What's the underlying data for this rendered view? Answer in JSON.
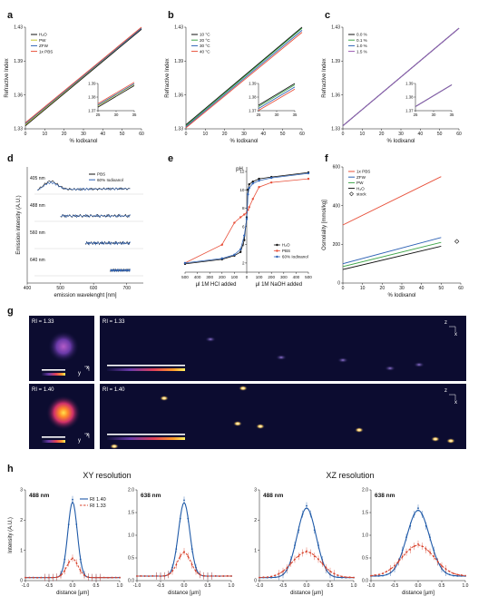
{
  "panel_letters": {
    "a": "a",
    "b": "b",
    "c": "c",
    "d": "d",
    "e": "e",
    "f": "f",
    "g": "g",
    "h": "h"
  },
  "colors": {
    "black": "#111111",
    "yellow": "#c7c72e",
    "blue": "#2e62b5",
    "orange": "#e8503a",
    "green": "#3fa64a",
    "purple": "#9a59b0",
    "darkred": "#c03020",
    "darkblue": "#1f5aa8",
    "red": "#d9452f"
  },
  "chart_data": [
    {
      "id": "a",
      "type": "line",
      "ylabel": "Refractive Index",
      "xlabel": "% Iodixanol",
      "xlim": [
        0,
        60
      ],
      "ylim": [
        1.33,
        1.43
      ],
      "xticks": [
        "0",
        "10",
        "20",
        "30",
        "40",
        "50",
        "60"
      ],
      "yticks": [
        "1.33",
        "1.36",
        "1.39",
        "1.43"
      ],
      "series": [
        {
          "name": "H₂O",
          "color": "#111111",
          "x": [
            0,
            60
          ],
          "y": [
            1.333,
            1.428
          ]
        },
        {
          "name": "PW",
          "color": "#c7c72e",
          "x": [
            0,
            60
          ],
          "y": [
            1.334,
            1.429
          ]
        },
        {
          "name": "ZFW",
          "color": "#2e62b5",
          "x": [
            0,
            60
          ],
          "y": [
            1.335,
            1.429
          ]
        },
        {
          "name": "1x PBS",
          "color": "#e8503a",
          "x": [
            0,
            60
          ],
          "y": [
            1.336,
            1.43
          ]
        }
      ],
      "inset": {
        "xticks": [
          "25",
          "30",
          "35"
        ],
        "yticks": [
          "1.37",
          "1.38",
          "1.39"
        ],
        "xlim": [
          25,
          35
        ],
        "ylim": [
          1.37,
          1.39
        ]
      }
    },
    {
      "id": "b",
      "type": "line",
      "ylabel": "Refractive Index",
      "xlabel": "% Iodixanol",
      "xlim": [
        0,
        60
      ],
      "ylim": [
        1.33,
        1.43
      ],
      "xticks": [
        "0",
        "10",
        "20",
        "30",
        "40",
        "50",
        "60"
      ],
      "yticks": [
        "1.33",
        "1.36",
        "1.39",
        "1.43"
      ],
      "series": [
        {
          "name": "10 °C",
          "color": "#111111",
          "x": [
            0,
            60
          ],
          "y": [
            1.334,
            1.43
          ]
        },
        {
          "name": "20 °C",
          "color": "#3fa64a",
          "x": [
            0,
            60
          ],
          "y": [
            1.333,
            1.429
          ]
        },
        {
          "name": "30 °C",
          "color": "#2e62b5",
          "x": [
            0,
            60
          ],
          "y": [
            1.332,
            1.427
          ]
        },
        {
          "name": "40 °C",
          "color": "#e8503a",
          "x": [
            0,
            60
          ],
          "y": [
            1.331,
            1.425
          ]
        }
      ],
      "inset": {
        "xticks": [
          "25",
          "30",
          "35"
        ],
        "yticks": [
          "1.37",
          "1.38",
          "1.39"
        ],
        "xlim": [
          25,
          35
        ],
        "ylim": [
          1.37,
          1.39
        ]
      }
    },
    {
      "id": "c",
      "type": "line",
      "ylabel": "Refractive Index",
      "xlabel": "% Iodixanol",
      "xlim": [
        0,
        60
      ],
      "ylim": [
        1.33,
        1.43
      ],
      "xticks": [
        "0",
        "10",
        "20",
        "30",
        "40",
        "50",
        "60"
      ],
      "yticks": [
        "1.33",
        "1.36",
        "1.39",
        "1.43"
      ],
      "series": [
        {
          "name": "0.0 %",
          "color": "#111111",
          "x": [
            0,
            60
          ],
          "y": [
            1.333,
            1.429
          ]
        },
        {
          "name": "0.1 %",
          "color": "#3fa64a",
          "x": [
            0,
            60
          ],
          "y": [
            1.333,
            1.429
          ]
        },
        {
          "name": "1.0 %",
          "color": "#2e62b5",
          "x": [
            0,
            60
          ],
          "y": [
            1.333,
            1.429
          ]
        },
        {
          "name": "1.5 %",
          "color": "#9a59b0",
          "x": [
            0,
            60
          ],
          "y": [
            1.333,
            1.429
          ]
        }
      ],
      "inset": {
        "xticks": [
          "25",
          "30",
          "35"
        ],
        "yticks": [
          "1.37",
          "1.38",
          "1.39"
        ],
        "xlim": [
          25,
          35
        ],
        "ylim": [
          1.37,
          1.39
        ]
      }
    },
    {
      "id": "d",
      "type": "line",
      "ylabel": "Emission intensity (A.U.)",
      "xlabel": "emission wavelenght [nm]",
      "xlim": [
        400,
        750
      ],
      "xticks": [
        "400",
        "500",
        "600",
        "700"
      ],
      "legend": [
        {
          "name": "PBS",
          "color": "#111111"
        },
        {
          "name": "60% Iodixanol",
          "color": "#2e62b5"
        }
      ],
      "rows": [
        {
          "label": "405 nm",
          "start": 430,
          "end": 710,
          "shape": "peak"
        },
        {
          "label": "488 nm",
          "start": 500,
          "end": 710,
          "shape": "flat"
        },
        {
          "label": "560 nm",
          "start": 575,
          "end": 710,
          "shape": "flat"
        },
        {
          "label": "640 nm",
          "start": 650,
          "end": 710,
          "shape": "flat"
        }
      ]
    },
    {
      "id": "e",
      "type": "line",
      "ylabel": "pH",
      "xlabel_left": "µl 1M HCl added",
      "xlabel_right": "µl 1M NaOH added",
      "xticks": [
        "500",
        "400",
        "300",
        "200",
        "100",
        "0",
        "100",
        "200",
        "300",
        "400",
        "500"
      ],
      "yticks": [
        "2",
        "4",
        "6",
        "8",
        "10",
        "12"
      ],
      "ylim": [
        1,
        12.5
      ],
      "series": [
        {
          "name": "H₂O",
          "color": "#111111",
          "x": [
            -500,
            -200,
            -100,
            -50,
            -20,
            0,
            10,
            20,
            50,
            100,
            200,
            500
          ],
          "y": [
            1.9,
            2.4,
            2.8,
            3.2,
            4.5,
            7,
            10,
            10.6,
            10.9,
            11.2,
            11.4,
            11.9
          ]
        },
        {
          "name": "PBS",
          "color": "#e8503a",
          "x": [
            -500,
            -200,
            -100,
            -50,
            -20,
            0,
            10,
            20,
            50,
            100,
            200,
            500
          ],
          "y": [
            2.0,
            4.0,
            6.4,
            7.0,
            7.3,
            7.5,
            7.8,
            8.1,
            9.0,
            10.3,
            10.8,
            11.2
          ]
        },
        {
          "name": "60% Iodixanol",
          "color": "#2e62b5",
          "x": [
            -500,
            -200,
            -100,
            -50,
            -20,
            0,
            10,
            20,
            50,
            100,
            200,
            500
          ],
          "y": [
            2.0,
            2.5,
            2.9,
            3.5,
            5.0,
            6.8,
            9.5,
            10.2,
            10.7,
            11.0,
            11.3,
            11.8
          ]
        }
      ]
    },
    {
      "id": "f",
      "type": "line",
      "ylabel": "Osmolality [mmol/kg]",
      "xlabel": "% Iodixanol",
      "xlim": [
        0,
        60
      ],
      "ylim": [
        0,
        600
      ],
      "xticks": [
        "0",
        "10",
        "20",
        "30",
        "40",
        "50",
        "60"
      ],
      "yticks": [
        "0",
        "200",
        "400",
        "600"
      ],
      "series": [
        {
          "name": "1x PBS",
          "color": "#e8503a",
          "x": [
            0,
            50
          ],
          "y": [
            300,
            550
          ]
        },
        {
          "name": "ZFW",
          "color": "#2e62b5",
          "x": [
            0,
            50
          ],
          "y": [
            100,
            235
          ]
        },
        {
          "name": "PW",
          "color": "#3fa64a",
          "x": [
            0,
            50
          ],
          "y": [
            85,
            210
          ]
        },
        {
          "name": "H₂O",
          "color": "#111111",
          "x": [
            0,
            50
          ],
          "y": [
            70,
            190
          ]
        }
      ],
      "stock": {
        "name": "stock",
        "x": 58,
        "y": 215
      }
    },
    {
      "id": "h1",
      "type": "line",
      "group_title": "XY resolution",
      "label": "488 nm",
      "xlabel": "distance [µm]",
      "ylabel": "Intensity (A.U.)",
      "xlim": [
        -1,
        1
      ],
      "ylim": [
        0,
        3
      ],
      "xticks": [
        "-1.0",
        "-0.5",
        "0.0",
        "0.5",
        "1.0"
      ],
      "yticks": [
        "0",
        "1",
        "2",
        "3"
      ],
      "series": [
        {
          "name": "RI 1.40",
          "color": "#1f5aa8",
          "peak": 2.6,
          "width": 0.1
        },
        {
          "name": "RI 1.33",
          "color": "#d9452f",
          "peak": 0.72,
          "width": 0.12
        }
      ]
    },
    {
      "id": "h2",
      "type": "line",
      "label": "638 nm",
      "xlabel": "distance [µm]",
      "xlim": [
        -1,
        1
      ],
      "ylim": [
        0,
        2
      ],
      "xticks": [
        "-1.0",
        "-0.5",
        "0.0",
        "0.5",
        "1.0"
      ],
      "yticks": [
        "0.0",
        "0.5",
        "1.0",
        "1.5",
        "2.0"
      ],
      "series": [
        {
          "name": "RI 1.40",
          "color": "#1f5aa8",
          "peak": 1.72,
          "width": 0.12
        },
        {
          "name": "RI 1.33",
          "color": "#d9452f",
          "peak": 0.62,
          "width": 0.14
        }
      ]
    },
    {
      "id": "h3",
      "type": "line",
      "group_title": "XZ resolution",
      "label": "488 nm",
      "xlabel": "distance [µm]",
      "xlim": [
        -1,
        1
      ],
      "ylim": [
        0,
        3
      ],
      "xticks": [
        "-1.0",
        "-0.5",
        "0.0",
        "0.5",
        "1.0"
      ],
      "yticks": [
        "0",
        "1",
        "2",
        "3"
      ],
      "series": [
        {
          "name": "RI 1.40",
          "color": "#1f5aa8",
          "peak": 2.4,
          "width": 0.2
        },
        {
          "name": "RI 1.33",
          "color": "#d9452f",
          "peak": 0.95,
          "width": 0.3
        }
      ]
    },
    {
      "id": "h4",
      "type": "line",
      "label": "638 nm",
      "xlabel": "distance [µm]",
      "xlim": [
        -1,
        1
      ],
      "ylim": [
        0,
        2
      ],
      "xticks": [
        "-1.0",
        "-0.5",
        "0.0",
        "0.5",
        "1.0"
      ],
      "yticks": [
        "0.0",
        "0.5",
        "1.0",
        "1.5",
        "2.0"
      ],
      "series": [
        {
          "name": "RI 1.40",
          "color": "#1f5aa8",
          "peak": 1.55,
          "width": 0.24
        },
        {
          "name": "RI 1.33",
          "color": "#d9452f",
          "peak": 0.78,
          "width": 0.34
        }
      ]
    }
  ],
  "panel_g": {
    "row1_small_label": "RI = 1.33",
    "row1_large_label": "RI = 1.33",
    "row2_small_label": "RI = 1.40",
    "row2_large_label": "RI = 1.40",
    "axis_y": "y",
    "axis_x": "x",
    "axis_z": "z"
  }
}
